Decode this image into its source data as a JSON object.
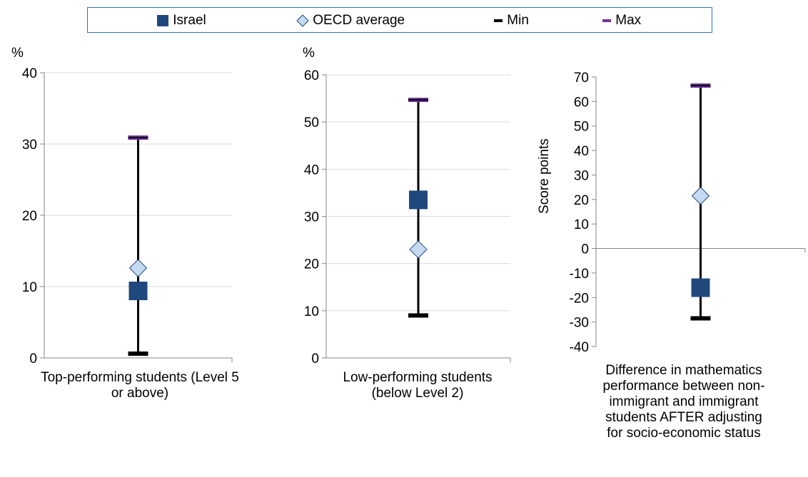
{
  "legend": {
    "items": [
      {
        "label": "Israel"
      },
      {
        "label": "OECD average"
      },
      {
        "label": "Min"
      },
      {
        "label": "Max"
      }
    ]
  },
  "colors": {
    "israel": "#1f497d",
    "oecd_fill": "#c5d9f1",
    "oecd_stroke": "#1f497d",
    "min": "#000000",
    "max": "#7030a0",
    "axis": "#868686",
    "grid": "#d9d9d9",
    "legend_border": "#2e75b6"
  },
  "chart_data": [
    {
      "type": "scatter",
      "category": "Top-performing students (Level 5 or above)",
      "unit_label": "%",
      "ylabel": "",
      "ylim": [
        0,
        40
      ],
      "yticks": [
        0,
        10,
        20,
        30,
        40
      ],
      "israel": 9.4,
      "oecd_average": 12.6,
      "min": 0.6,
      "max": 30.9,
      "grid": true
    },
    {
      "type": "scatter",
      "category": "Low-performing students (below Level 2)",
      "unit_label": "%",
      "ylabel": "",
      "ylim": [
        0,
        60
      ],
      "yticks": [
        0,
        10,
        20,
        30,
        40,
        50,
        60
      ],
      "israel": 33.5,
      "oecd_average": 23.0,
      "min": 9.0,
      "max": 54.7,
      "grid": true
    },
    {
      "type": "scatter",
      "category": "Difference in mathematics performance between non-immigrant and immigrant students AFTER adjusting for socio-economic status",
      "unit_label": "",
      "ylabel": "Score points",
      "ylim": [
        -40,
        70
      ],
      "yticks": [
        -40,
        -30,
        -20,
        -10,
        0,
        10,
        20,
        30,
        40,
        50,
        60,
        70
      ],
      "israel": -16,
      "oecd_average": 21.5,
      "min": -28.5,
      "max": 66.5,
      "grid": false
    }
  ]
}
